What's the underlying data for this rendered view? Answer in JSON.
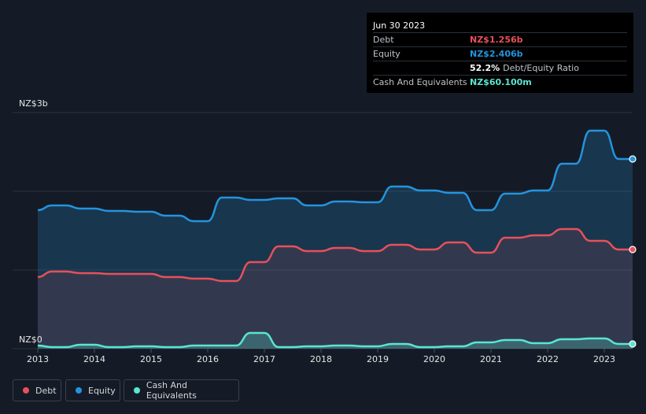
{
  "tooltip": {
    "date": "Jun 30 2023",
    "rows": [
      {
        "label": "Debt",
        "value": "NZ$1.256b",
        "color": "#e8505b"
      },
      {
        "label": "Equity",
        "value": "NZ$2.406b",
        "color": "#2394df"
      },
      {
        "label": "",
        "value": "52.2%",
        "sub": "Debt/Equity Ratio",
        "color": "#ffffff"
      },
      {
        "label": "Cash And Equivalents",
        "value": "NZ$60.100m",
        "color": "#59e6d0"
      }
    ]
  },
  "legend": [
    {
      "label": "Debt",
      "color": "#e8505b"
    },
    {
      "label": "Equity",
      "color": "#2394df"
    },
    {
      "label": "Cash And Equivalents",
      "color": "#59e6d0"
    }
  ],
  "chart_data": {
    "type": "area",
    "title": "",
    "xlabel": "",
    "ylabel": "",
    "y_top_label": "NZ$3b",
    "y_bottom_label": "NZ$0",
    "ylim": [
      0,
      3.0
    ],
    "xlim": [
      2013.0,
      2023.5
    ],
    "x_ticks": [
      "2013",
      "2014",
      "2015",
      "2016",
      "2017",
      "2018",
      "2019",
      "2020",
      "2021",
      "2022",
      "2023"
    ],
    "series": [
      {
        "name": "Equity",
        "color": "#2394df",
        "x": [
          2013.0,
          2013.25,
          2013.5,
          2013.75,
          2014.0,
          2014.25,
          2014.5,
          2014.75,
          2015.0,
          2015.25,
          2015.5,
          2015.75,
          2016.0,
          2016.25,
          2016.5,
          2016.75,
          2017.0,
          2017.25,
          2017.5,
          2017.75,
          2018.0,
          2018.25,
          2018.5,
          2018.75,
          2019.0,
          2019.25,
          2019.5,
          2019.75,
          2020.0,
          2020.25,
          2020.5,
          2020.75,
          2021.0,
          2021.25,
          2021.5,
          2021.75,
          2022.0,
          2022.25,
          2022.5,
          2022.75,
          2023.0,
          2023.25,
          2023.5
        ],
        "values": [
          1.76,
          1.82,
          1.82,
          1.78,
          1.78,
          1.75,
          1.75,
          1.74,
          1.74,
          1.69,
          1.69,
          1.62,
          1.62,
          1.92,
          1.92,
          1.89,
          1.89,
          1.91,
          1.91,
          1.82,
          1.82,
          1.87,
          1.87,
          1.86,
          1.86,
          2.06,
          2.06,
          2.01,
          2.01,
          1.98,
          1.98,
          1.76,
          1.76,
          1.97,
          1.97,
          2.01,
          2.01,
          2.35,
          2.35,
          2.77,
          2.77,
          2.41,
          2.41
        ]
      },
      {
        "name": "Debt",
        "color": "#e8505b",
        "x": [
          2013.0,
          2013.25,
          2013.5,
          2013.75,
          2014.0,
          2014.25,
          2014.5,
          2014.75,
          2015.0,
          2015.25,
          2015.5,
          2015.75,
          2016.0,
          2016.25,
          2016.5,
          2016.75,
          2017.0,
          2017.25,
          2017.5,
          2017.75,
          2018.0,
          2018.25,
          2018.5,
          2018.75,
          2019.0,
          2019.25,
          2019.5,
          2019.75,
          2020.0,
          2020.25,
          2020.5,
          2020.75,
          2021.0,
          2021.25,
          2021.5,
          2021.75,
          2022.0,
          2022.25,
          2022.5,
          2022.75,
          2023.0,
          2023.25,
          2023.5
        ],
        "values": [
          0.91,
          0.98,
          0.98,
          0.96,
          0.96,
          0.95,
          0.95,
          0.95,
          0.95,
          0.91,
          0.91,
          0.89,
          0.89,
          0.86,
          0.86,
          1.1,
          1.1,
          1.3,
          1.3,
          1.24,
          1.24,
          1.28,
          1.28,
          1.24,
          1.24,
          1.32,
          1.32,
          1.26,
          1.26,
          1.35,
          1.35,
          1.22,
          1.22,
          1.41,
          1.41,
          1.44,
          1.44,
          1.52,
          1.52,
          1.37,
          1.37,
          1.26,
          1.26
        ]
      },
      {
        "name": "Cash And Equivalents",
        "color": "#59e6d0",
        "x": [
          2013.0,
          2013.25,
          2013.5,
          2013.75,
          2014.0,
          2014.25,
          2014.5,
          2014.75,
          2015.0,
          2015.25,
          2015.5,
          2015.75,
          2016.0,
          2016.25,
          2016.5,
          2016.75,
          2017.0,
          2017.25,
          2017.5,
          2017.75,
          2018.0,
          2018.25,
          2018.5,
          2018.75,
          2019.0,
          2019.25,
          2019.5,
          2019.75,
          2020.0,
          2020.25,
          2020.5,
          2020.75,
          2021.0,
          2021.25,
          2021.5,
          2021.75,
          2022.0,
          2022.25,
          2022.5,
          2022.75,
          2023.0,
          2023.25,
          2023.5
        ],
        "values": [
          0.04,
          0.02,
          0.02,
          0.05,
          0.05,
          0.02,
          0.02,
          0.03,
          0.03,
          0.02,
          0.02,
          0.04,
          0.04,
          0.04,
          0.04,
          0.2,
          0.2,
          0.02,
          0.02,
          0.03,
          0.03,
          0.04,
          0.04,
          0.03,
          0.03,
          0.06,
          0.06,
          0.02,
          0.02,
          0.03,
          0.03,
          0.08,
          0.08,
          0.11,
          0.11,
          0.07,
          0.07,
          0.12,
          0.12,
          0.13,
          0.13,
          0.06,
          0.06
        ]
      }
    ]
  }
}
